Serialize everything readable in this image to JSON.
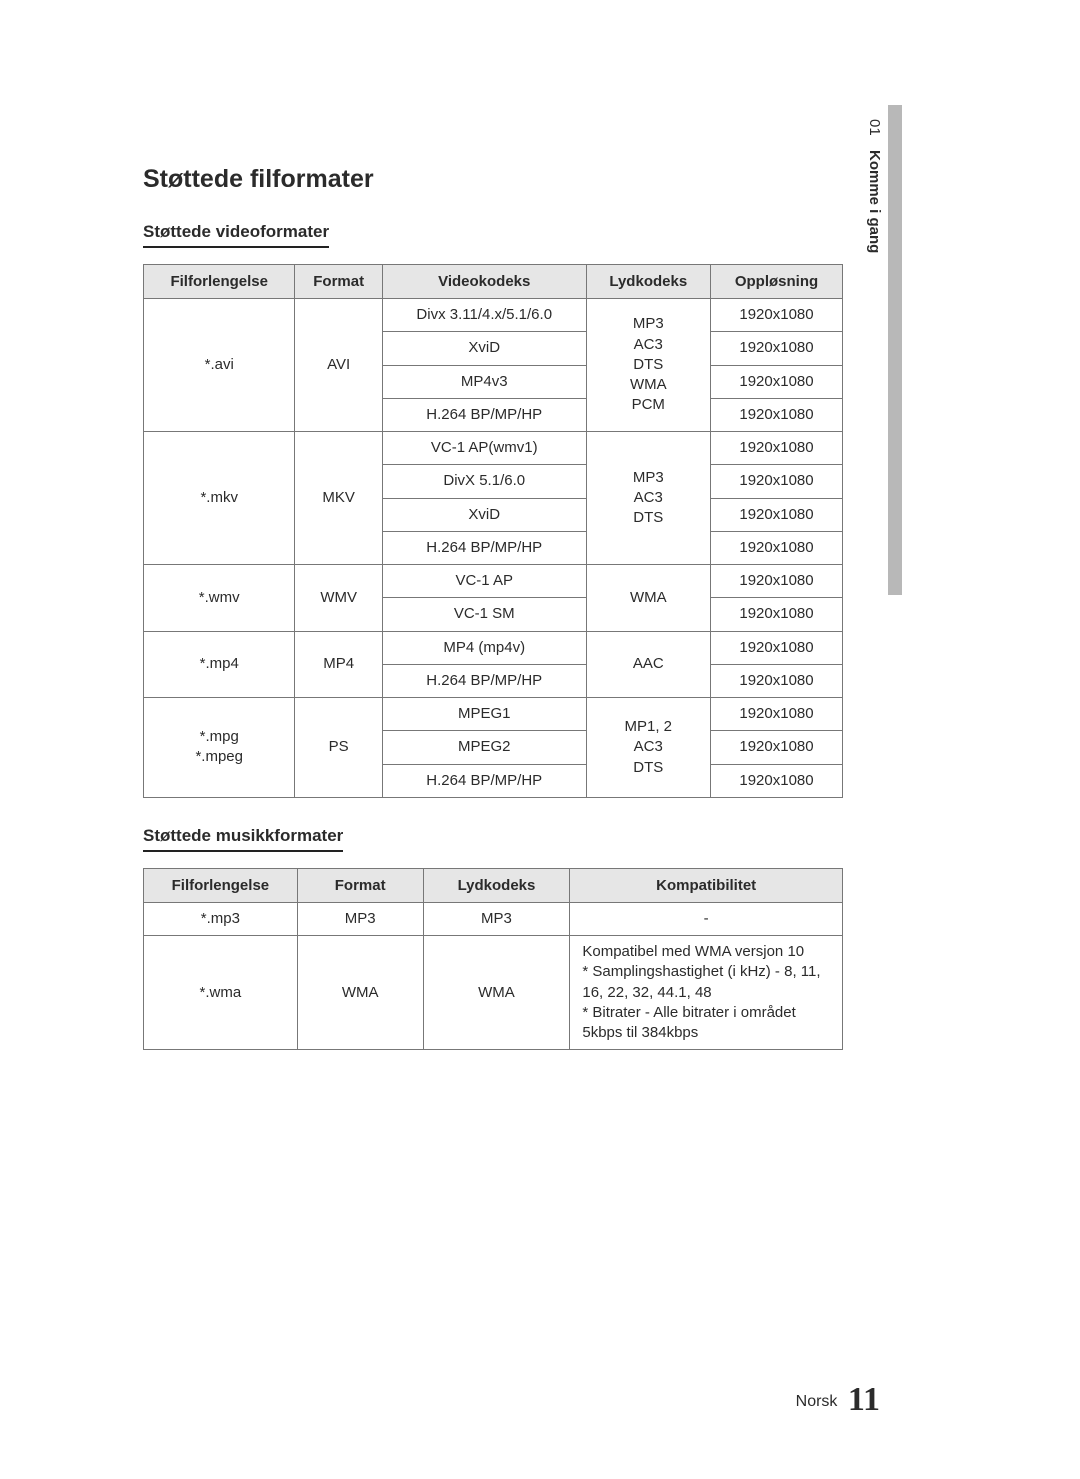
{
  "colors": {
    "header_bg": "#e6e6e6",
    "border": "#777777",
    "text": "#2b2b2b",
    "sidebar_bar": "#b8b8b8",
    "underline": "#222222"
  },
  "sidebar": {
    "chapter_num": "01",
    "chapter_title": "Komme i gang"
  },
  "main_title": "Støttede filformater",
  "video_section": {
    "title": "Støttede videoformater",
    "headers": [
      "Filforlengelse",
      "Format",
      "Videokodeks",
      "Lydkodeks",
      "Oppløsning"
    ],
    "groups": [
      {
        "ext": "*.avi",
        "format": "AVI",
        "audio": "MP3\nAC3\nDTS\nWMA\nPCM",
        "rows": [
          {
            "vcodec": "Divx 3.11/4.x/5.1/6.0",
            "res": "1920x1080"
          },
          {
            "vcodec": "XviD",
            "res": "1920x1080"
          },
          {
            "vcodec": "MP4v3",
            "res": "1920x1080"
          },
          {
            "vcodec": "H.264 BP/MP/HP",
            "res": "1920x1080"
          }
        ]
      },
      {
        "ext": "*.mkv",
        "format": "MKV",
        "audio": "MP3\nAC3\nDTS",
        "rows": [
          {
            "vcodec": "VC-1 AP(wmv1)",
            "res": "1920x1080"
          },
          {
            "vcodec": "DivX 5.1/6.0",
            "res": "1920x1080"
          },
          {
            "vcodec": "XviD",
            "res": "1920x1080"
          },
          {
            "vcodec": "H.264 BP/MP/HP",
            "res": "1920x1080"
          }
        ]
      },
      {
        "ext": "*.wmv",
        "format": "WMV",
        "audio": "WMA",
        "rows": [
          {
            "vcodec": "VC-1 AP",
            "res": "1920x1080"
          },
          {
            "vcodec": "VC-1 SM",
            "res": "1920x1080"
          }
        ]
      },
      {
        "ext": "*.mp4",
        "format": "MP4",
        "audio": "AAC",
        "rows": [
          {
            "vcodec": "MP4 (mp4v)",
            "res": "1920x1080"
          },
          {
            "vcodec": "H.264 BP/MP/HP",
            "res": "1920x1080"
          }
        ]
      },
      {
        "ext": "*.mpg\n*.mpeg",
        "format": "PS",
        "audio": "MP1, 2\nAC3\nDTS",
        "rows": [
          {
            "vcodec": "MPEG1",
            "res": "1920x1080"
          },
          {
            "vcodec": "MPEG2",
            "res": "1920x1080"
          },
          {
            "vcodec": "H.264 BP/MP/HP",
            "res": "1920x1080"
          }
        ]
      }
    ]
  },
  "music_section": {
    "title": "Støttede musikkformater",
    "headers": [
      "Filforlengelse",
      "Format",
      "Lydkodeks",
      "Kompatibilitet"
    ],
    "col_widths": [
      "22%",
      "18%",
      "21%",
      "39%"
    ],
    "rows": [
      {
        "ext": "*.mp3",
        "format": "MP3",
        "acodec": "MP3",
        "compat": "-",
        "compat_align": "center"
      },
      {
        "ext": "*.wma",
        "format": "WMA",
        "acodec": "WMA",
        "compat": "Kompatibel med WMA versjon 10\n* Samplingshastighet (i kHz) - 8, 11, 16, 22, 32, 44.1, 48\n* Bitrater - Alle bitrater i området 5kbps til 384kbps",
        "compat_align": "left"
      }
    ]
  },
  "footer": {
    "lang": "Norsk",
    "page": "11"
  }
}
